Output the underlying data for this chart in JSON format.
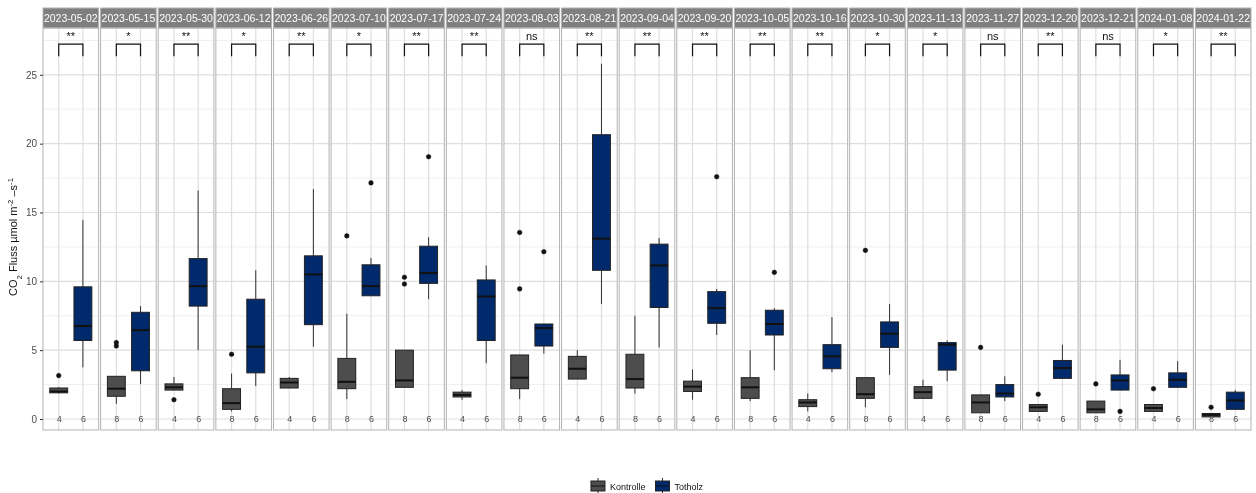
{
  "chart_data": [
    {
      "type": "box",
      "title": "2023-05-02",
      "ylabel": "CO$_{2}$ Fluss  µmol m$^{-2}$ –s$^{-1}$",
      "categories": [
        "4",
        "6"
      ],
      "ylim": [
        -0.8,
        28.4
      ],
      "yticks": [
        0,
        5,
        10,
        15,
        20,
        25
      ],
      "grid": true,
      "legend": "bottom",
      "annotations": [
        "**"
      ],
      "series": [
        {
          "name": "Kontrolle",
          "color": "#4d4d4d",
          "boxes": [
            {
              "low": 1.85,
              "q1": 1.9,
              "median": 2.0,
              "q3": 2.25,
              "high": 2.3,
              "outliers": [
                3.15
              ]
            },
            null
          ]
        },
        {
          "name": "Totholz",
          "color": "#002a6c",
          "boxes": [
            null,
            {
              "low": 3.75,
              "q1": 5.7,
              "median": 6.75,
              "q3": 9.6,
              "high": 14.45
            }
          ]
        }
      ]
    },
    {
      "type": "box",
      "title": "2023-05-15",
      "categories": [
        "8",
        "6"
      ],
      "ylim": [
        -0.8,
        28.4
      ],
      "yticks": [
        0,
        5,
        10,
        15,
        20,
        25
      ],
      "tick_labels": "x",
      "grid": true,
      "annotations": [
        "*"
      ],
      "series": [
        {
          "color": "#4d4d4d",
          "boxes": [
            {
              "low": 1.1,
              "q1": 1.65,
              "median": 2.2,
              "q3": 3.1,
              "high": 3.1,
              "outliers": [
                5.55,
                5.3
              ]
            },
            null
          ]
        },
        {
          "color": "#002a6c",
          "boxes": [
            null,
            {
              "low": 2.55,
              "q1": 3.5,
              "median": 6.45,
              "q3": 7.75,
              "high": 8.2
            }
          ]
        }
      ]
    },
    {
      "type": "box",
      "title": "2023-05-30",
      "categories": [
        "4",
        "6"
      ],
      "ylim": [
        -0.8,
        28.4
      ],
      "yticks": [
        0,
        5,
        10,
        15,
        20,
        25
      ],
      "tick_labels": "x",
      "grid": true,
      "annotations": [
        "**"
      ],
      "series": [
        {
          "color": "#4d4d4d",
          "boxes": [
            {
              "low": 2.1,
              "q1": 2.1,
              "median": 2.3,
              "q3": 2.55,
              "high": 3.05,
              "outliers": [
                1.4
              ]
            },
            null
          ]
        },
        {
          "color": "#002a6c",
          "boxes": [
            null,
            {
              "low": 5.0,
              "q1": 8.2,
              "median": 9.65,
              "q3": 11.65,
              "high": 16.6
            }
          ]
        }
      ]
    },
    {
      "type": "box",
      "title": "2023-06-12",
      "categories": [
        "8",
        "6"
      ],
      "ylim": [
        -0.8,
        28.4
      ],
      "yticks": [
        0,
        5,
        10,
        15,
        20,
        25
      ],
      "tick_labels": "x",
      "grid": true,
      "annotations": [
        "*"
      ],
      "series": [
        {
          "color": "#4d4d4d",
          "boxes": [
            {
              "low": 0.55,
              "q1": 0.7,
              "median": 1.15,
              "q3": 2.2,
              "high": 3.3,
              "outliers": [
                4.7
              ]
            },
            null
          ]
        },
        {
          "color": "#002a6c",
          "boxes": [
            null,
            {
              "low": 2.4,
              "q1": 3.35,
              "median": 5.25,
              "q3": 8.7,
              "high": 10.8
            }
          ]
        }
      ]
    },
    {
      "type": "box",
      "title": "2023-06-26",
      "categories": [
        "4",
        "6"
      ],
      "ylim": [
        -0.8,
        28.4
      ],
      "yticks": [
        0,
        5,
        10,
        15,
        20,
        25
      ],
      "tick_labels": "x",
      "grid": true,
      "annotations": [
        "**"
      ],
      "series": [
        {
          "color": "#4d4d4d",
          "boxes": [
            {
              "low": 2.25,
              "q1": 2.25,
              "median": 2.65,
              "q3": 2.95,
              "high": 3.05
            },
            null
          ]
        },
        {
          "color": "#002a6c",
          "boxes": [
            null,
            {
              "low": 5.25,
              "q1": 6.85,
              "median": 10.5,
              "q3": 11.85,
              "high": 16.7
            }
          ]
        }
      ]
    },
    {
      "type": "box",
      "title": "2023-07-10",
      "categories": [
        "8",
        "6"
      ],
      "ylim": [
        -0.8,
        28.4
      ],
      "yticks": [
        0,
        5,
        10,
        15,
        20,
        25
      ],
      "tick_labels": "x",
      "grid": true,
      "annotations": [
        "*"
      ],
      "series": [
        {
          "color": "#4d4d4d",
          "boxes": [
            {
              "low": 1.45,
              "q1": 2.2,
              "median": 2.7,
              "q3": 4.4,
              "high": 7.65,
              "outliers": [
                13.3
              ]
            },
            null
          ]
        },
        {
          "color": "#002a6c",
          "boxes": [
            null,
            {
              "low": 8.95,
              "q1": 8.95,
              "median": 9.65,
              "q3": 11.2,
              "high": 11.7,
              "outliers": [
                17.15
              ]
            }
          ]
        }
      ]
    },
    {
      "type": "box",
      "title": "2023-07-17",
      "categories": [
        "8",
        "6"
      ],
      "ylim": [
        -0.8,
        28.4
      ],
      "yticks": [
        0,
        5,
        10,
        15,
        20,
        25
      ],
      "tick_labels": "x",
      "grid": true,
      "annotations": [
        "**"
      ],
      "series": [
        {
          "color": "#4d4d4d",
          "boxes": [
            {
              "low": 2.3,
              "q1": 2.3,
              "median": 2.8,
              "q3": 5.0,
              "high": 5.0,
              "outliers": [
                10.3,
                9.8
              ]
            },
            null
          ]
        },
        {
          "color": "#002a6c",
          "boxes": [
            null,
            {
              "low": 8.7,
              "q1": 9.85,
              "median": 10.6,
              "q3": 12.55,
              "high": 13.2,
              "outliers": [
                19.05
              ]
            }
          ]
        }
      ]
    },
    {
      "type": "box",
      "title": "2023-07-24",
      "categories": [
        "4",
        "6"
      ],
      "ylim": [
        -0.8,
        28.4
      ],
      "yticks": [
        0,
        5,
        10,
        15,
        20,
        25
      ],
      "tick_labels": "x",
      "grid": true,
      "annotations": [
        "**"
      ],
      "series": [
        {
          "color": "#4d4d4d",
          "boxes": [
            {
              "low": 1.4,
              "q1": 1.6,
              "median": 1.75,
              "q3": 1.95,
              "high": 2.1
            },
            null
          ]
        },
        {
          "color": "#002a6c",
          "boxes": [
            null,
            {
              "low": 4.05,
              "q1": 5.7,
              "median": 8.9,
              "q3": 10.1,
              "high": 11.15
            }
          ]
        }
      ]
    },
    {
      "type": "box",
      "title": "2023-08-03",
      "categories": [
        "8",
        "6"
      ],
      "ylim": [
        -0.8,
        28.4
      ],
      "yticks": [
        0,
        5,
        10,
        15,
        20,
        25
      ],
      "tick_labels": "x",
      "grid": true,
      "annotations": [
        "ns"
      ],
      "series": [
        {
          "color": "#4d4d4d",
          "boxes": [
            {
              "low": 1.45,
              "q1": 2.2,
              "median": 3.0,
              "q3": 4.65,
              "high": 4.65,
              "outliers": [
                13.55,
                9.45
              ]
            },
            null
          ]
        },
        {
          "color": "#002a6c",
          "boxes": [
            null,
            {
              "low": 4.75,
              "q1": 5.3,
              "median": 6.6,
              "q3": 6.9,
              "high": 6.9,
              "outliers": [
                12.15
              ]
            }
          ]
        }
      ]
    },
    {
      "type": "box",
      "title": "2023-08-21",
      "categories": [
        "4",
        "6"
      ],
      "ylim": [
        -0.8,
        28.4
      ],
      "yticks": [
        0,
        5,
        10,
        15,
        20,
        25
      ],
      "tick_labels": "x",
      "grid": true,
      "annotations": [
        "**"
      ],
      "series": [
        {
          "color": "#4d4d4d",
          "boxes": [
            {
              "low": 2.9,
              "q1": 2.9,
              "median": 3.65,
              "q3": 4.55,
              "high": 5.0
            },
            null
          ]
        },
        {
          "color": "#002a6c",
          "boxes": [
            null,
            {
              "low": 8.35,
              "q1": 10.8,
              "median": 13.1,
              "q3": 20.65,
              "high": 25.8
            }
          ]
        }
      ]
    },
    {
      "type": "box",
      "title": "2023-09-04",
      "categories": [
        "8",
        "6"
      ],
      "ylim": [
        -0.8,
        28.4
      ],
      "yticks": [
        0,
        5,
        10,
        15,
        20,
        25
      ],
      "tick_labels": "x",
      "grid": true,
      "annotations": [
        "**"
      ],
      "series": [
        {
          "color": "#4d4d4d",
          "boxes": [
            {
              "low": 1.85,
              "q1": 2.25,
              "median": 2.9,
              "q3": 4.7,
              "high": 7.5
            },
            null
          ]
        },
        {
          "color": "#002a6c",
          "boxes": [
            null,
            {
              "low": 5.2,
              "q1": 8.1,
              "median": 11.15,
              "q3": 12.7,
              "high": 13.15
            }
          ]
        }
      ]
    },
    {
      "type": "box",
      "title": "2023-09-20",
      "categories": [
        "4",
        "6"
      ],
      "ylim": [
        -0.8,
        28.4
      ],
      "yticks": [
        0,
        5,
        10,
        15,
        20,
        25
      ],
      "tick_labels": "x",
      "grid": true,
      "annotations": [
        "**"
      ],
      "series": [
        {
          "color": "#4d4d4d",
          "boxes": [
            {
              "low": 1.4,
              "q1": 2.0,
              "median": 2.35,
              "q3": 2.75,
              "high": 3.6
            },
            null
          ]
        },
        {
          "color": "#002a6c",
          "boxes": [
            null,
            {
              "low": 6.1,
              "q1": 6.95,
              "median": 8.05,
              "q3": 9.25,
              "high": 9.45,
              "outliers": [
                17.6
              ]
            }
          ]
        }
      ]
    },
    {
      "type": "box",
      "title": "2023-10-05",
      "categories": [
        "8",
        "6"
      ],
      "ylim": [
        -0.8,
        28.4
      ],
      "yticks": [
        0,
        5,
        10,
        15,
        20,
        25
      ],
      "tick_labels": "x",
      "grid": true,
      "annotations": [
        "**"
      ],
      "series": [
        {
          "color": "#4d4d4d",
          "boxes": [
            {
              "low": 1.3,
              "q1": 1.5,
              "median": 2.3,
              "q3": 3.0,
              "high": 5.0
            },
            null
          ]
        },
        {
          "color": "#002a6c",
          "boxes": [
            null,
            {
              "low": 3.55,
              "q1": 6.1,
              "median": 6.9,
              "q3": 7.9,
              "high": 8.05,
              "outliers": [
                10.65
              ]
            }
          ]
        }
      ]
    },
    {
      "type": "box",
      "title": "2023-10-16",
      "categories": [
        "4",
        "6"
      ],
      "ylim": [
        -0.8,
        28.4
      ],
      "yticks": [
        0,
        5,
        10,
        15,
        20,
        25
      ],
      "tick_labels": "x",
      "grid": true,
      "annotations": [
        "**"
      ],
      "series": [
        {
          "color": "#4d4d4d",
          "boxes": [
            {
              "low": 0.55,
              "q1": 0.9,
              "median": 1.2,
              "q3": 1.4,
              "high": 1.85
            },
            null
          ]
        },
        {
          "color": "#002a6c",
          "boxes": [
            null,
            {
              "low": 3.4,
              "q1": 3.65,
              "median": 4.55,
              "q3": 5.4,
              "high": 7.4
            }
          ]
        }
      ]
    },
    {
      "type": "box",
      "title": "2023-10-30",
      "categories": [
        "8",
        "6"
      ],
      "ylim": [
        -0.8,
        28.4
      ],
      "yticks": [
        0,
        5,
        10,
        15,
        20,
        25
      ],
      "tick_labels": "x",
      "grid": true,
      "annotations": [
        "*"
      ],
      "series": [
        {
          "color": "#4d4d4d",
          "boxes": [
            {
              "low": 0.85,
              "q1": 1.5,
              "median": 1.8,
              "q3": 3.0,
              "high": 3.0,
              "outliers": [
                12.25
              ]
            },
            null
          ]
        },
        {
          "color": "#002a6c",
          "boxes": [
            null,
            {
              "low": 3.2,
              "q1": 5.2,
              "median": 6.2,
              "q3": 7.05,
              "high": 8.35
            }
          ]
        }
      ]
    },
    {
      "type": "box",
      "title": "2023-11-13",
      "categories": [
        "4",
        "6"
      ],
      "ylim": [
        -0.8,
        28.4
      ],
      "yticks": [
        0,
        5,
        10,
        15,
        20,
        25
      ],
      "tick_labels": "x",
      "grid": true,
      "annotations": [
        "*"
      ],
      "series": [
        {
          "color": "#4d4d4d",
          "boxes": [
            {
              "low": 1.5,
              "q1": 1.5,
              "median": 1.95,
              "q3": 2.35,
              "high": 2.85
            },
            null
          ]
        },
        {
          "color": "#002a6c",
          "boxes": [
            null,
            {
              "low": 2.75,
              "q1": 3.55,
              "median": 5.4,
              "q3": 5.55,
              "high": 5.7
            }
          ]
        }
      ]
    },
    {
      "type": "box",
      "title": "2023-11-27",
      "categories": [
        "8",
        "6"
      ],
      "ylim": [
        -0.8,
        28.4
      ],
      "yticks": [
        0,
        5,
        10,
        15,
        20,
        25
      ],
      "tick_labels": "x",
      "grid": true,
      "annotations": [
        "ns"
      ],
      "series": [
        {
          "color": "#4d4d4d",
          "boxes": [
            {
              "low": 0.45,
              "q1": 0.45,
              "median": 1.2,
              "q3": 1.75,
              "high": 1.75,
              "outliers": [
                5.2
              ]
            },
            null
          ]
        },
        {
          "color": "#002a6c",
          "boxes": [
            null,
            {
              "low": 1.3,
              "q1": 1.6,
              "median": 1.85,
              "q3": 2.5,
              "high": 3.1
            }
          ]
        }
      ]
    },
    {
      "type": "box",
      "title": "2023-12-20",
      "categories": [
        "4",
        "6"
      ],
      "ylim": [
        -0.8,
        28.4
      ],
      "yticks": [
        0,
        5,
        10,
        15,
        20,
        25
      ],
      "tick_labels": "x",
      "grid": true,
      "annotations": [
        "**"
      ],
      "series": [
        {
          "color": "#4d4d4d",
          "boxes": [
            {
              "low": 0.55,
              "q1": 0.55,
              "median": 0.85,
              "q3": 1.05,
              "high": 1.05,
              "outliers": [
                1.8
              ]
            },
            null
          ]
        },
        {
          "color": "#002a6c",
          "boxes": [
            null,
            {
              "low": 2.95,
              "q1": 2.95,
              "median": 3.7,
              "q3": 4.25,
              "high": 5.4
            }
          ]
        }
      ]
    },
    {
      "type": "box",
      "title": "2023-12-21",
      "categories": [
        "8",
        "6"
      ],
      "ylim": [
        -0.8,
        28.4
      ],
      "yticks": [
        0,
        5,
        10,
        15,
        20,
        25
      ],
      "tick_labels": "x",
      "grid": true,
      "annotations": [
        "ns"
      ],
      "series": [
        {
          "color": "#4d4d4d",
          "boxes": [
            {
              "low": 0.45,
              "q1": 0.45,
              "median": 0.7,
              "q3": 1.3,
              "high": 1.3,
              "outliers": [
                2.55
              ]
            },
            null
          ]
        },
        {
          "color": "#002a6c",
          "boxes": [
            null,
            {
              "low": 2.1,
              "q1": 2.1,
              "median": 2.8,
              "q3": 3.2,
              "high": 4.3,
              "outliers": [
                0.55
              ]
            }
          ]
        }
      ]
    },
    {
      "type": "box",
      "title": "2024-01-08",
      "categories": [
        "4",
        "6"
      ],
      "ylim": [
        -0.8,
        28.4
      ],
      "yticks": [
        0,
        5,
        10,
        15,
        20,
        25
      ],
      "tick_labels": "x",
      "grid": true,
      "annotations": [
        "*"
      ],
      "series": [
        {
          "color": "#4d4d4d",
          "boxes": [
            {
              "low": 0.55,
              "q1": 0.55,
              "median": 0.8,
              "q3": 1.05,
              "high": 1.05,
              "outliers": [
                2.2
              ]
            },
            null
          ]
        },
        {
          "color": "#002a6c",
          "boxes": [
            null,
            {
              "low": 2.25,
              "q1": 2.3,
              "median": 2.85,
              "q3": 3.35,
              "high": 4.2
            }
          ]
        }
      ]
    },
    {
      "type": "box",
      "title": "2024-01-22",
      "categories": [
        "8",
        "6"
      ],
      "ylim": [
        -0.8,
        28.4
      ],
      "yticks": [
        0,
        5,
        10,
        15,
        20,
        25
      ],
      "tick_labels": "x",
      "grid": true,
      "annotations": [
        "**"
      ],
      "series": [
        {
          "color": "#4d4d4d",
          "boxes": [
            {
              "low": 0.15,
              "q1": 0.15,
              "median": 0.3,
              "q3": 0.4,
              "high": 0.4,
              "outliers": [
                0.85
              ]
            },
            null
          ]
        },
        {
          "color": "#002a6c",
          "boxes": [
            null,
            {
              "low": 0.7,
              "q1": 0.7,
              "median": 1.35,
              "q3": 1.95,
              "high": 2.1
            }
          ]
        }
      ]
    }
  ]
}
